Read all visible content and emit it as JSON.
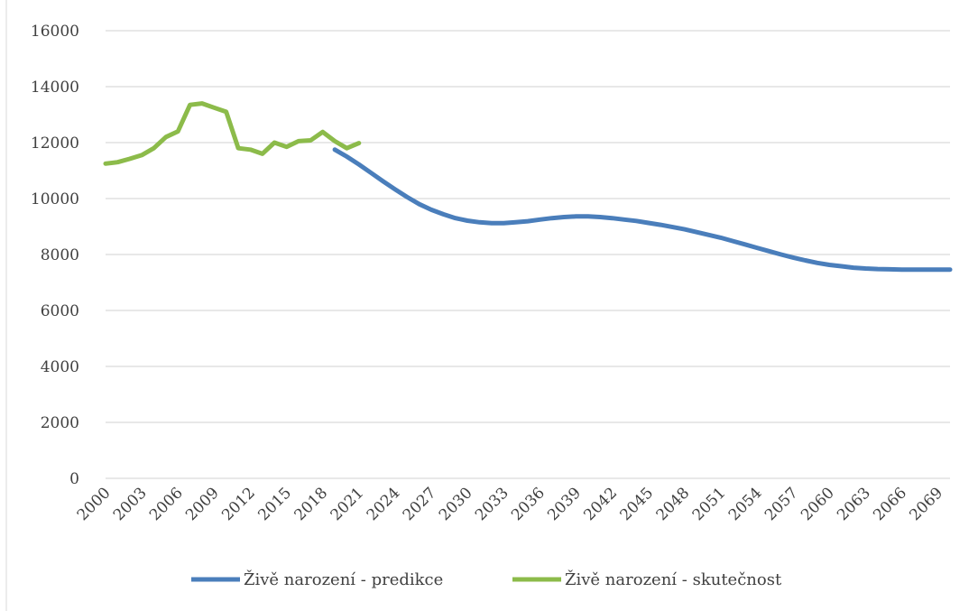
{
  "chart_data": {
    "type": "line",
    "title": "",
    "xlabel": "",
    "ylabel": "",
    "ylim": [
      0,
      16000
    ],
    "yticks": [
      0,
      2000,
      4000,
      6000,
      8000,
      10000,
      12000,
      14000,
      16000
    ],
    "xlim": [
      2000,
      2070
    ],
    "xticks": [
      2000,
      2003,
      2006,
      2009,
      2012,
      2015,
      2018,
      2021,
      2024,
      2027,
      2030,
      2033,
      2036,
      2039,
      2042,
      2045,
      2048,
      2051,
      2054,
      2057,
      2060,
      2063,
      2066,
      2069
    ],
    "grid": true,
    "legend_position": "bottom",
    "series": [
      {
        "name": "Živě narození - predikce",
        "color": "#4a7ebb",
        "x": [
          2019,
          2020,
          2021,
          2022,
          2023,
          2024,
          2025,
          2026,
          2027,
          2028,
          2029,
          2030,
          2031,
          2032,
          2033,
          2034,
          2035,
          2036,
          2037,
          2038,
          2039,
          2040,
          2041,
          2042,
          2043,
          2044,
          2045,
          2046,
          2047,
          2048,
          2049,
          2050,
          2051,
          2052,
          2053,
          2054,
          2055,
          2056,
          2057,
          2058,
          2059,
          2060,
          2061,
          2062,
          2063,
          2064,
          2065,
          2066,
          2067,
          2068,
          2069,
          2070
        ],
        "values": [
          11750,
          11500,
          11220,
          10920,
          10620,
          10330,
          10050,
          9800,
          9600,
          9440,
          9300,
          9210,
          9150,
          9120,
          9120,
          9150,
          9190,
          9250,
          9300,
          9340,
          9360,
          9360,
          9340,
          9300,
          9250,
          9200,
          9130,
          9060,
          8980,
          8900,
          8800,
          8700,
          8600,
          8480,
          8360,
          8240,
          8120,
          8000,
          7890,
          7790,
          7700,
          7630,
          7580,
          7530,
          7500,
          7480,
          7470,
          7460,
          7460,
          7460,
          7460,
          7460
        ]
      },
      {
        "name": "Živě narození - skutečnost",
        "color": "#8cbb4a",
        "x": [
          2000,
          2001,
          2002,
          2003,
          2004,
          2005,
          2006,
          2007,
          2008,
          2009,
          2010,
          2011,
          2012,
          2013,
          2014,
          2015,
          2016,
          2017,
          2018,
          2019,
          2020,
          2021
        ],
        "values": [
          11250,
          11300,
          11420,
          11550,
          11800,
          12200,
          12400,
          13350,
          13400,
          13250,
          13100,
          11800,
          11750,
          11600,
          12000,
          11850,
          12050,
          12080,
          12380,
          12050,
          11800,
          11980
        ]
      }
    ]
  }
}
